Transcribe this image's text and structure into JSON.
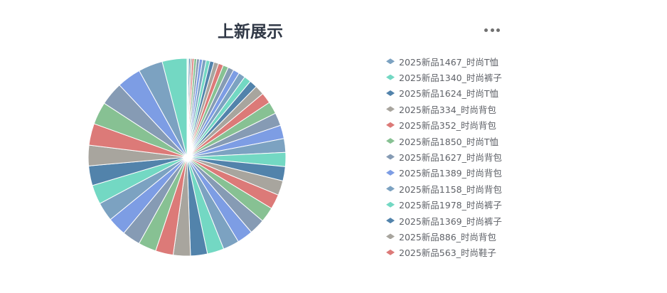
{
  "toolbar": {
    "menu_icon": "more-horizontal-icon"
  },
  "chart_data": {
    "type": "pie",
    "title": "上新展示",
    "legend": "right",
    "palette": [
      "#7ca2c1",
      "#73d8c3",
      "#5283ab",
      "#a8a59e",
      "#dc7a78",
      "#87c193",
      "#869bb4",
      "#7d9de4"
    ],
    "slices": [
      {
        "name": "2025新品1467_时尚T恤",
        "value": 4
      },
      {
        "name": "2025新品1340_时尚裤子",
        "value": 6
      },
      {
        "name": "2025新品1624_时尚T恤",
        "value": 9
      },
      {
        "name": "2025新品334_时尚背包",
        "value": 10
      },
      {
        "name": "2025新品352_时尚背包",
        "value": 12
      },
      {
        "name": "2025新品1850_时尚T恤",
        "value": 15
      },
      {
        "name": "2025新品1627_时尚背包",
        "value": 16
      },
      {
        "name": "2025新品1389_时尚背包",
        "value": 18
      },
      {
        "name": "2025新品1158_时尚背包",
        "value": 21
      },
      {
        "name": "2025新品1978_时尚裤子",
        "value": 22
      },
      {
        "name": "2025新品1369_时尚裤子",
        "value": 24
      },
      {
        "name": "2025新品886_时尚背包",
        "value": 27
      },
      {
        "name": "2025新品563_时尚鞋子",
        "value": 29
      },
      {
        "value": 31
      },
      {
        "value": 34
      },
      {
        "value": 36
      },
      {
        "value": 39
      },
      {
        "value": 41
      },
      {
        "value": 45
      },
      {
        "value": 55
      },
      {
        "value": 63
      },
      {
        "value": 71
      },
      {
        "value": 75
      },
      {
        "value": 78
      },
      {
        "value": 80
      },
      {
        "value": 82
      },
      {
        "value": 83
      },
      {
        "value": 85
      },
      {
        "value": 86
      },
      {
        "value": 88
      },
      {
        "value": 91
      },
      {
        "value": 92
      },
      {
        "value": 94
      },
      {
        "value": 97
      },
      {
        "value": 98
      },
      {
        "value": 100
      },
      {
        "value": 103
      },
      {
        "value": 104
      },
      {
        "value": 106
      },
      {
        "value": 109
      },
      {
        "value": 110
      },
      {
        "value": 112
      },
      {
        "value": 114
      },
      {
        "value": 120
      },
      {
        "value": 126
      },
      {
        "value": 131
      },
      {
        "value": 136
      },
      {
        "value": 140
      },
      {
        "value": 142
      },
      {
        "value": 144
      }
    ]
  }
}
